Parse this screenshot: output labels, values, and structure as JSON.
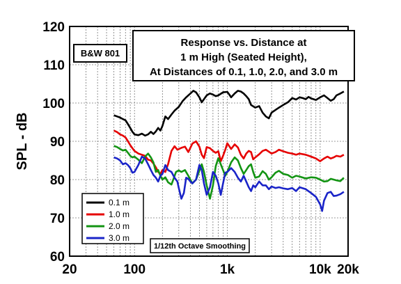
{
  "chart_data": {
    "type": "line",
    "title_lines": [
      "Response vs. Distance at",
      "1 m High (Seated Height),",
      "At Distances of 0.1, 1.0, 2.0, and 3.0 m"
    ],
    "model_label": "B&W 801",
    "smoothing_note": "1/12th Octave Smoothing",
    "ylabel": "SPL - dB",
    "xlabel": "",
    "x_scale": "log",
    "xlim": [
      20,
      20000
    ],
    "ylim": [
      60,
      120
    ],
    "x_ticks": [
      {
        "value": 20,
        "label": "20"
      },
      {
        "value": 100,
        "label": "100"
      },
      {
        "value": 1000,
        "label": "1k"
      },
      {
        "value": 10000,
        "label": "10k"
      },
      {
        "value": 20000,
        "label": "20k"
      }
    ],
    "y_ticks": [
      {
        "value": 60,
        "label": "60"
      },
      {
        "value": 70,
        "label": "70"
      },
      {
        "value": 80,
        "label": "80"
      },
      {
        "value": 90,
        "label": "90"
      },
      {
        "value": 100,
        "label": "100"
      },
      {
        "value": 110,
        "label": "110"
      },
      {
        "value": 120,
        "label": "120"
      }
    ],
    "grid": true,
    "legend_position": "bottom-left",
    "series": [
      {
        "name": "0.1 m",
        "color": "#000000",
        "points": [
          [
            60,
            96.8
          ],
          [
            65,
            96.5
          ],
          [
            70,
            96.2
          ],
          [
            75,
            95.8
          ],
          [
            80,
            95.5
          ],
          [
            85,
            94.5
          ],
          [
            90,
            93.5
          ],
          [
            95,
            92.5
          ],
          [
            100,
            91.8
          ],
          [
            110,
            91.6
          ],
          [
            120,
            92.0
          ],
          [
            130,
            91.5
          ],
          [
            140,
            91.8
          ],
          [
            150,
            92.5
          ],
          [
            160,
            91.9
          ],
          [
            170,
            92.6
          ],
          [
            180,
            93.5
          ],
          [
            190,
            92.8
          ],
          [
            200,
            94.0
          ],
          [
            215,
            96.5
          ],
          [
            230,
            95.8
          ],
          [
            250,
            97.0
          ],
          [
            270,
            98.0
          ],
          [
            300,
            99.0
          ],
          [
            330,
            100.5
          ],
          [
            360,
            101.5
          ],
          [
            400,
            102.5
          ],
          [
            430,
            103.2
          ],
          [
            460,
            102.8
          ],
          [
            500,
            101.5
          ],
          [
            530,
            100.2
          ],
          [
            560,
            101.0
          ],
          [
            600,
            102.0
          ],
          [
            650,
            102.5
          ],
          [
            700,
            102.2
          ],
          [
            750,
            101.8
          ],
          [
            800,
            102.0
          ],
          [
            900,
            102.8
          ],
          [
            1000,
            102.9
          ],
          [
            1050,
            102.2
          ],
          [
            1100,
            101.5
          ],
          [
            1200,
            102.5
          ],
          [
            1300,
            103.2
          ],
          [
            1400,
            103.0
          ],
          [
            1500,
            102.5
          ],
          [
            1600,
            101.8
          ],
          [
            1700,
            101.0
          ],
          [
            1800,
            99.5
          ],
          [
            2000,
            98.8
          ],
          [
            2200,
            99.2
          ],
          [
            2400,
            97.5
          ],
          [
            2600,
            96.5
          ],
          [
            2800,
            96.0
          ],
          [
            3000,
            97.5
          ],
          [
            3300,
            98.2
          ],
          [
            3600,
            98.8
          ],
          [
            4000,
            99.5
          ],
          [
            4500,
            100.2
          ],
          [
            5000,
            101.3
          ],
          [
            5500,
            100.9
          ],
          [
            6000,
            101.5
          ],
          [
            6500,
            101.3
          ],
          [
            7000,
            101.0
          ],
          [
            7500,
            101.6
          ],
          [
            8000,
            101.2
          ],
          [
            9000,
            100.8
          ],
          [
            10000,
            101.5
          ],
          [
            11000,
            102.0
          ],
          [
            12000,
            101.3
          ],
          [
            13000,
            100.6
          ],
          [
            14000,
            101.0
          ],
          [
            15000,
            102.0
          ],
          [
            16500,
            102.5
          ],
          [
            18000,
            103.0
          ]
        ]
      },
      {
        "name": "1.0 m",
        "color": "#e60000",
        "points": [
          [
            60,
            92.8
          ],
          [
            65,
            92.4
          ],
          [
            70,
            91.8
          ],
          [
            75,
            91.5
          ],
          [
            80,
            91.0
          ],
          [
            85,
            90.0
          ],
          [
            90,
            89.0
          ],
          [
            95,
            88.2
          ],
          [
            100,
            87.5
          ],
          [
            110,
            86.8
          ],
          [
            120,
            86.5
          ],
          [
            130,
            86.2
          ],
          [
            140,
            85.2
          ],
          [
            150,
            85.0
          ],
          [
            160,
            84.2
          ],
          [
            170,
            83.2
          ],
          [
            180,
            82.0
          ],
          [
            190,
            81.5
          ],
          [
            200,
            82.5
          ],
          [
            215,
            82.0
          ],
          [
            230,
            84.0
          ],
          [
            250,
            87.5
          ],
          [
            270,
            88.7
          ],
          [
            290,
            87.8
          ],
          [
            320,
            88.3
          ],
          [
            350,
            88.6
          ],
          [
            380,
            87.2
          ],
          [
            420,
            89.4
          ],
          [
            460,
            90.0
          ],
          [
            500,
            88.6
          ],
          [
            530,
            86.5
          ],
          [
            560,
            85.6
          ],
          [
            600,
            88.5
          ],
          [
            650,
            88.2
          ],
          [
            700,
            87.5
          ],
          [
            750,
            87.0
          ],
          [
            800,
            87.4
          ],
          [
            850,
            84.8
          ],
          [
            900,
            86.2
          ],
          [
            950,
            87.8
          ],
          [
            1000,
            89.5
          ],
          [
            1100,
            88.0
          ],
          [
            1200,
            89.2
          ],
          [
            1300,
            88.4
          ],
          [
            1400,
            86.5
          ],
          [
            1500,
            85.5
          ],
          [
            1600,
            86.8
          ],
          [
            1700,
            87.5
          ],
          [
            1800,
            87.2
          ],
          [
            1900,
            85.3
          ],
          [
            2000,
            85.8
          ],
          [
            2200,
            86.6
          ],
          [
            2400,
            87.5
          ],
          [
            2600,
            87.8
          ],
          [
            2800,
            87.3
          ],
          [
            3000,
            86.8
          ],
          [
            3300,
            87.2
          ],
          [
            3600,
            87.8
          ],
          [
            4000,
            87.4
          ],
          [
            4500,
            87.0
          ],
          [
            5000,
            86.8
          ],
          [
            5500,
            86.5
          ],
          [
            6000,
            86.8
          ],
          [
            7000,
            86.5
          ],
          [
            8000,
            86.0
          ],
          [
            9000,
            85.5
          ],
          [
            10000,
            84.8
          ],
          [
            11000,
            85.5
          ],
          [
            12000,
            86.0
          ],
          [
            13000,
            85.5
          ],
          [
            14000,
            85.8
          ],
          [
            15000,
            86.2
          ],
          [
            16500,
            86.0
          ],
          [
            18000,
            86.5
          ]
        ]
      },
      {
        "name": "2.0 m",
        "color": "#139413",
        "points": [
          [
            60,
            88.8
          ],
          [
            65,
            88.5
          ],
          [
            70,
            88.0
          ],
          [
            75,
            87.6
          ],
          [
            80,
            87.8
          ],
          [
            85,
            87.0
          ],
          [
            90,
            86.2
          ],
          [
            95,
            85.8
          ],
          [
            100,
            86.0
          ],
          [
            110,
            85.2
          ],
          [
            120,
            84.3
          ],
          [
            130,
            86.0
          ],
          [
            140,
            86.8
          ],
          [
            150,
            85.8
          ],
          [
            160,
            84.5
          ],
          [
            170,
            82.0
          ],
          [
            180,
            82.5
          ],
          [
            190,
            81.0
          ],
          [
            200,
            80.0
          ],
          [
            215,
            80.6
          ],
          [
            230,
            79.3
          ],
          [
            250,
            78.7
          ],
          [
            260,
            79.8
          ],
          [
            280,
            82.0
          ],
          [
            300,
            82.4
          ],
          [
            320,
            82.0
          ],
          [
            350,
            82.5
          ],
          [
            380,
            81.0
          ],
          [
            420,
            79.0
          ],
          [
            460,
            80.0
          ],
          [
            500,
            82.3
          ],
          [
            530,
            84.0
          ],
          [
            560,
            82.0
          ],
          [
            600,
            78.5
          ],
          [
            650,
            75.0
          ],
          [
            700,
            78.5
          ],
          [
            750,
            83.5
          ],
          [
            800,
            85.6
          ],
          [
            850,
            84.0
          ],
          [
            900,
            82.5
          ],
          [
            950,
            81.0
          ],
          [
            1000,
            82.0
          ],
          [
            1100,
            84.5
          ],
          [
            1200,
            85.8
          ],
          [
            1300,
            85.0
          ],
          [
            1400,
            83.0
          ],
          [
            1500,
            81.5
          ],
          [
            1600,
            82.5
          ],
          [
            1700,
            83.5
          ],
          [
            1800,
            84.0
          ],
          [
            1900,
            82.0
          ],
          [
            2000,
            80.5
          ],
          [
            2200,
            80.8
          ],
          [
            2400,
            82.2
          ],
          [
            2600,
            81.5
          ],
          [
            2800,
            80.0
          ],
          [
            3000,
            80.6
          ],
          [
            3300,
            81.8
          ],
          [
            3600,
            82.3
          ],
          [
            4000,
            81.5
          ],
          [
            4500,
            81.2
          ],
          [
            5000,
            80.5
          ],
          [
            5500,
            81.0
          ],
          [
            6000,
            80.8
          ],
          [
            7000,
            80.3
          ],
          [
            8000,
            80.6
          ],
          [
            9000,
            80.5
          ],
          [
            10000,
            80.0
          ],
          [
            11000,
            79.5
          ],
          [
            12000,
            79.6
          ],
          [
            13000,
            80.2
          ],
          [
            14000,
            80.0
          ],
          [
            15000,
            79.8
          ],
          [
            16500,
            79.6
          ],
          [
            18000,
            80.5
          ]
        ]
      },
      {
        "name": "3.0 m",
        "color": "#1a24c8",
        "points": [
          [
            60,
            85.8
          ],
          [
            65,
            85.5
          ],
          [
            70,
            85.0
          ],
          [
            75,
            84.0
          ],
          [
            80,
            84.3
          ],
          [
            85,
            83.8
          ],
          [
            90,
            83.0
          ],
          [
            95,
            81.8
          ],
          [
            100,
            82.0
          ],
          [
            110,
            83.8
          ],
          [
            120,
            86.0
          ],
          [
            130,
            85.5
          ],
          [
            140,
            84.0
          ],
          [
            150,
            82.5
          ],
          [
            160,
            81.2
          ],
          [
            170,
            80.5
          ],
          [
            180,
            79.5
          ],
          [
            190,
            81.0
          ],
          [
            200,
            81.5
          ],
          [
            215,
            83.8
          ],
          [
            230,
            82.5
          ],
          [
            250,
            82.0
          ],
          [
            270,
            80.5
          ],
          [
            290,
            79.5
          ],
          [
            300,
            77.8
          ],
          [
            320,
            75.0
          ],
          [
            340,
            76.5
          ],
          [
            360,
            80.5
          ],
          [
            380,
            80.2
          ],
          [
            400,
            79.5
          ],
          [
            420,
            79.0
          ],
          [
            460,
            80.0
          ],
          [
            500,
            83.8
          ],
          [
            530,
            82.5
          ],
          [
            560,
            79.0
          ],
          [
            600,
            76.0
          ],
          [
            650,
            78.0
          ],
          [
            700,
            82.0
          ],
          [
            750,
            81.0
          ],
          [
            800,
            79.0
          ],
          [
            850,
            76.0
          ],
          [
            900,
            79.0
          ],
          [
            950,
            81.8
          ],
          [
            1000,
            82.0
          ],
          [
            1100,
            83.0
          ],
          [
            1200,
            82.0
          ],
          [
            1300,
            80.5
          ],
          [
            1400,
            79.5
          ],
          [
            1500,
            81.0
          ],
          [
            1600,
            79.5
          ],
          [
            1700,
            78.0
          ],
          [
            1800,
            77.0
          ],
          [
            1900,
            78.5
          ],
          [
            2000,
            78.0
          ],
          [
            2200,
            79.5
          ],
          [
            2400,
            78.5
          ],
          [
            2600,
            78.5
          ],
          [
            2800,
            77.5
          ],
          [
            3000,
            78.2
          ],
          [
            3300,
            77.8
          ],
          [
            3600,
            78.0
          ],
          [
            4000,
            77.7
          ],
          [
            4500,
            77.5
          ],
          [
            5000,
            77.8
          ],
          [
            5500,
            77.0
          ],
          [
            6000,
            78.0
          ],
          [
            7000,
            77.5
          ],
          [
            8000,
            76.5
          ],
          [
            9000,
            75.5
          ],
          [
            10000,
            73.5
          ],
          [
            10500,
            71.8
          ],
          [
            11000,
            74.5
          ],
          [
            12000,
            76.5
          ],
          [
            13000,
            76.8
          ],
          [
            14000,
            75.7
          ],
          [
            15000,
            75.8
          ],
          [
            16500,
            76.2
          ],
          [
            18000,
            76.8
          ]
        ]
      }
    ]
  }
}
